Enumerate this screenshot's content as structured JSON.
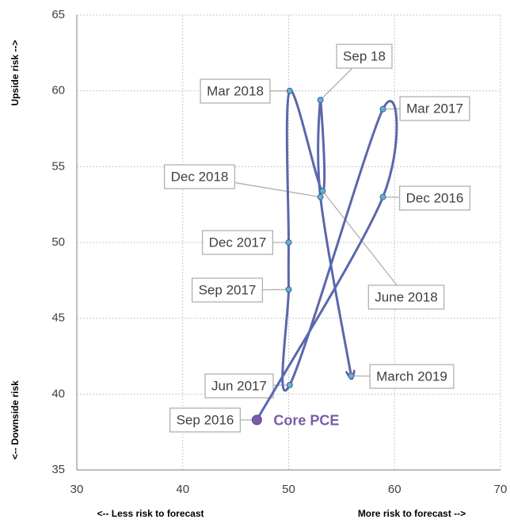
{
  "chart_data": {
    "type": "line",
    "series": [
      {
        "name": "Core PCE",
        "color": "#5b67ac",
        "x": [
          47,
          58.9,
          58.9,
          50.1,
          50,
          50,
          50.1,
          53.2,
          53,
          53,
          55.9
        ],
        "values": [
          38.3,
          53,
          58.8,
          40.6,
          46.9,
          50,
          60,
          53.4,
          59.4,
          53,
          41.2
        ],
        "labels": [
          "Sep 2016",
          "Dec 2016",
          "Mar 2017",
          "Jun 2017",
          "Sep 2017",
          "Dec 2017",
          "Mar 2018",
          "June 2018",
          "Sep 18",
          "Dec 2018",
          "March 2019"
        ]
      }
    ],
    "xlabel_left": "<-- Less risk to forecast",
    "xlabel_right": "More risk to forecast -->",
    "ylabel_top": "Upside risk -->",
    "ylabel_bottom": "<-- Downside risk",
    "xlim": [
      30,
      70
    ],
    "xticks": [
      30,
      40,
      50,
      60,
      70
    ],
    "ylim": [
      35,
      65
    ],
    "yticks": [
      35,
      40,
      45,
      50,
      55,
      60,
      65
    ],
    "grid": true
  }
}
